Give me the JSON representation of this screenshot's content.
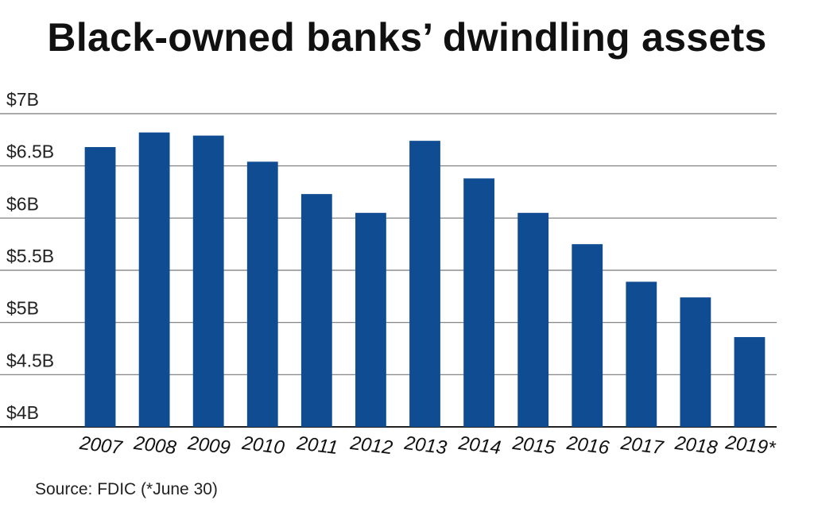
{
  "chart_data": {
    "type": "bar",
    "title": "Black-owned banks’ dwindling assets",
    "xlabel": "",
    "ylabel": "",
    "categories": [
      "2007",
      "2008",
      "2009",
      "2010",
      "2011",
      "2012",
      "2013",
      "2014",
      "2015",
      "2016",
      "2017",
      "2018",
      "2019*"
    ],
    "values": [
      6.68,
      6.82,
      6.79,
      6.54,
      6.23,
      6.05,
      6.74,
      6.38,
      6.05,
      5.75,
      5.39,
      5.24,
      4.86
    ],
    "ylim": [
      4,
      7
    ],
    "yticks": [
      4,
      4.5,
      5,
      5.5,
      6,
      6.5,
      7
    ],
    "ytick_labels": [
      "$4B",
      "$4.5B",
      "$5B",
      "$5.5B",
      "$6B",
      "$6.5B",
      "$7B"
    ],
    "grid": true,
    "bar_color": "#0f4c92",
    "source": "Source: FDIC (*June 30)"
  }
}
